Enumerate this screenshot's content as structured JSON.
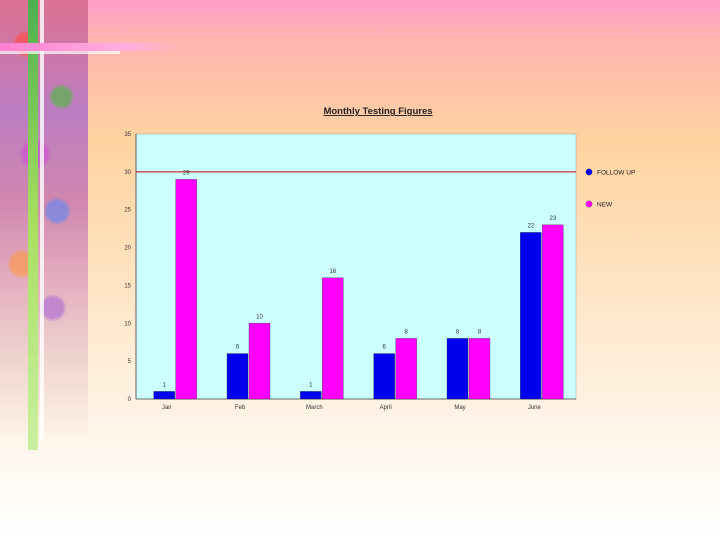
{
  "chart_data": {
    "type": "bar",
    "title": "Monthly Testing Figures",
    "categories": [
      "Jan",
      "Feb",
      "March",
      "April",
      "May",
      "June"
    ],
    "series": [
      {
        "name": "FOLLOW UP",
        "color": "#0000ee",
        "values": [
          1,
          6,
          1,
          6,
          8,
          22
        ],
        "labels": [
          "1",
          "6",
          "1",
          "6",
          "8",
          "22"
        ]
      },
      {
        "name": "NEW",
        "color": "#ff00ff",
        "values": [
          29,
          10,
          16,
          8,
          8,
          23
        ],
        "labels": [
          "29",
          "10",
          "16",
          "8",
          "8",
          "23"
        ]
      }
    ],
    "ylim": [
      0,
      35
    ],
    "yticks": [
      0,
      5,
      10,
      15,
      20,
      25,
      30,
      35
    ],
    "reference_line": {
      "value": 30,
      "color": "#cc0000"
    },
    "plot_background": "#ccffff",
    "legend_position": "right",
    "grid": false
  }
}
